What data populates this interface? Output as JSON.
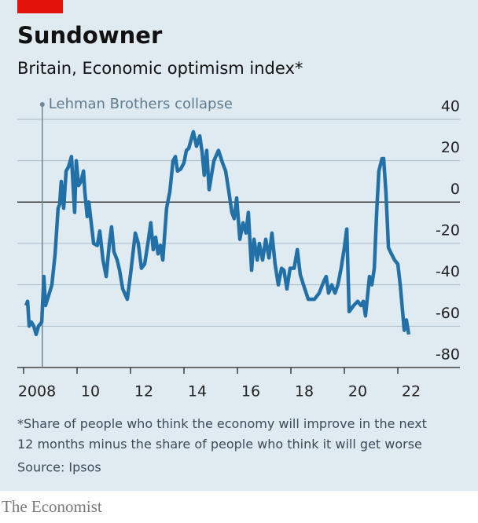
{
  "chart_data": {
    "type": "line",
    "title": "Sundowner",
    "subtitle": "Britain, Economic optimism index*",
    "note": "*Share of people who think the economy will improve in the next 12 months minus the share of people who think it will get worse",
    "source": "Source: Ipsos",
    "annotation": {
      "x": 2008.7,
      "text": "Lehman Brothers collapse"
    },
    "color": "#2270a8",
    "grid": true,
    "xlim": [
      2008,
      2023
    ],
    "xticks": [
      {
        "value": 2008,
        "label": "2008"
      },
      {
        "value": 2010,
        "label": "10"
      },
      {
        "value": 2012,
        "label": "12"
      },
      {
        "value": 2014,
        "label": "14"
      },
      {
        "value": 2016,
        "label": "16"
      },
      {
        "value": 2018,
        "label": "18"
      },
      {
        "value": 2020,
        "label": "20"
      },
      {
        "value": 2022,
        "label": "22"
      }
    ],
    "ylim": [
      -80,
      40
    ],
    "yticks": [
      40,
      20,
      0,
      -20,
      -40,
      -60,
      -80
    ],
    "x": [
      2008.09,
      2008.15,
      2008.21,
      2008.29,
      2008.38,
      2008.47,
      2008.56,
      2008.68,
      2008.76,
      2008.82,
      2008.94,
      2009.06,
      2009.18,
      2009.29,
      2009.35,
      2009.41,
      2009.5,
      2009.59,
      2009.68,
      2009.79,
      2009.91,
      2009.97,
      2010.06,
      2010.15,
      2010.24,
      2010.29,
      2010.38,
      2010.44,
      2010.53,
      2010.62,
      2010.76,
      2010.85,
      2010.97,
      2011.09,
      2011.21,
      2011.29,
      2011.38,
      2011.5,
      2011.59,
      2011.71,
      2011.88,
      2012.0,
      2012.18,
      2012.29,
      2012.41,
      2012.53,
      2012.65,
      2012.76,
      2012.85,
      2012.94,
      2013.03,
      2013.12,
      2013.21,
      2013.35,
      2013.47,
      2013.59,
      2013.68,
      2013.76,
      2013.88,
      2014.0,
      2014.09,
      2014.18,
      2014.35,
      2014.47,
      2014.59,
      2014.68,
      2014.76,
      2014.85,
      2014.94,
      2015.03,
      2015.12,
      2015.29,
      2015.44,
      2015.56,
      2015.68,
      2015.79,
      2015.88,
      2015.97,
      2016.09,
      2016.21,
      2016.32,
      2016.41,
      2016.53,
      2016.62,
      2016.74,
      2016.82,
      2016.94,
      2017.06,
      2017.18,
      2017.29,
      2017.41,
      2017.53,
      2017.65,
      2017.74,
      2017.85,
      2017.97,
      2018.12,
      2018.24,
      2018.35,
      2018.47,
      2018.65,
      2018.88,
      2019.06,
      2019.24,
      2019.32,
      2019.41,
      2019.53,
      2019.65,
      2019.76,
      2019.88,
      2020.0,
      2020.09,
      2020.18,
      2020.35,
      2020.5,
      2020.62,
      2020.71,
      2020.79,
      2020.94,
      2021.03,
      2021.12,
      2021.21,
      2021.29,
      2021.41,
      2021.47,
      2021.56,
      2021.65,
      2021.76,
      2021.88,
      2022.0,
      2022.09,
      2022.18,
      2022.24,
      2022.32,
      2022.41
    ],
    "values": [
      -50,
      -48,
      -60,
      -58,
      -60,
      -64,
      -60,
      -58,
      -36,
      -50,
      -45,
      -40,
      -25,
      -3,
      -1,
      10,
      -3,
      15,
      17,
      22,
      -5,
      20,
      8,
      10,
      15,
      5,
      -7,
      0,
      -10,
      -20,
      -21,
      -14,
      -28,
      -36,
      -20,
      -12,
      -24,
      -28,
      -33,
      -42,
      -47,
      -35,
      -15,
      -20,
      -32,
      -30,
      -20,
      -10,
      -23,
      -17,
      -25,
      -21,
      -28,
      -3,
      5,
      20,
      22,
      15,
      16,
      19,
      25,
      26,
      34,
      27,
      32,
      24,
      13,
      25,
      6,
      13,
      20,
      25,
      19,
      15,
      5,
      -5,
      -8,
      2,
      -18,
      -10,
      -15,
      -5,
      -33,
      -18,
      -28,
      -20,
      -28,
      -18,
      -27,
      -15,
      -30,
      -40,
      -32,
      -33,
      -42,
      -32,
      -32,
      -23,
      -35,
      -40,
      -47,
      -47,
      -44,
      -38,
      -36,
      -44,
      -40,
      -44,
      -40,
      -32,
      -22,
      -13,
      -53,
      -50,
      -48,
      -50,
      -48,
      -55,
      -36,
      -40,
      -32,
      -5,
      15,
      21,
      21,
      4,
      -22,
      -25,
      -28,
      -30,
      -40,
      -53,
      -62,
      -57,
      -64
    ]
  },
  "publisher": "The Economist"
}
